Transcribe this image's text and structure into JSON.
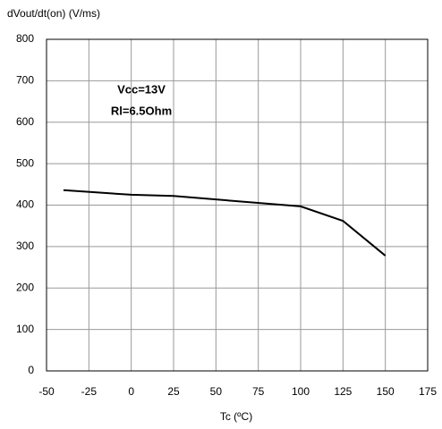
{
  "chart_data": {
    "type": "line",
    "y_axis_label": "dVout/dt(on) (V/ms)",
    "x_axis_label": "Tc (ºC)",
    "annotations": [
      "Vcc=13V",
      "Rl=6.5Ohm"
    ],
    "x": [
      -40,
      0,
      25,
      100,
      125,
      150
    ],
    "series": [
      {
        "color": "#000000",
        "values": [
          436,
          425,
          422,
          397,
          362,
          278
        ]
      }
    ],
    "xlim": [
      -50,
      175
    ],
    "xticks": [
      -50,
      -25,
      0,
      25,
      50,
      75,
      100,
      125,
      150,
      175
    ],
    "ylim": [
      0,
      800
    ],
    "yticks": [
      0,
      100,
      200,
      300,
      400,
      500,
      600,
      700,
      800
    ],
    "grid": true
  }
}
